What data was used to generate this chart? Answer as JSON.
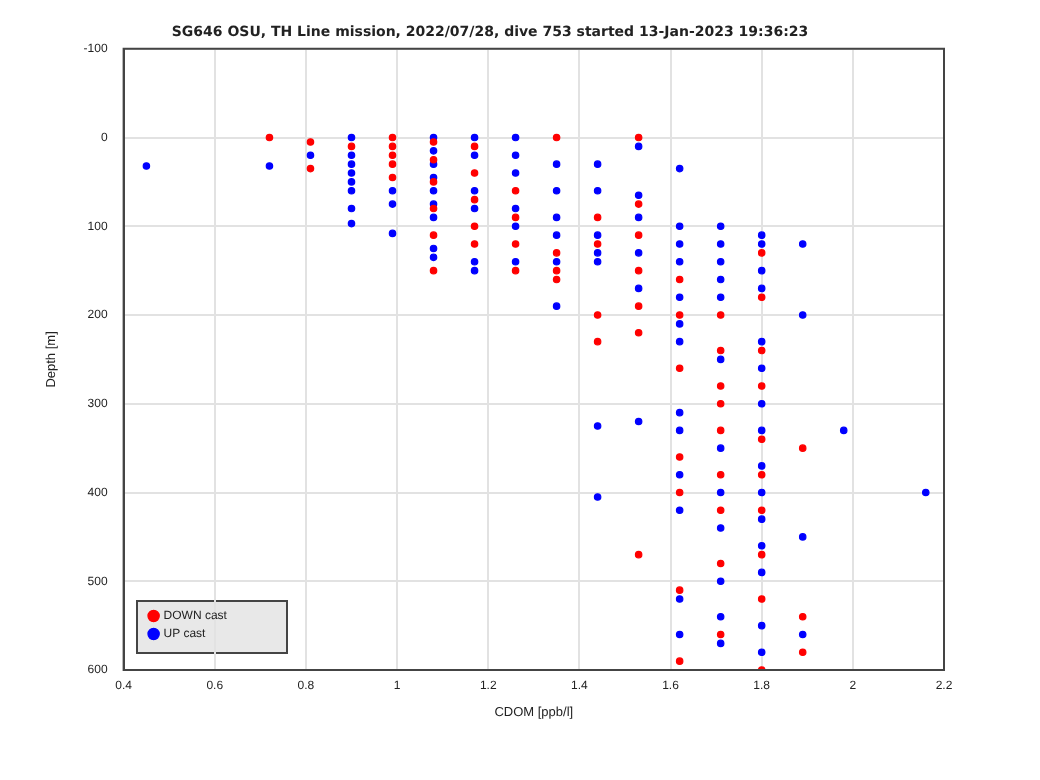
{
  "chart_data": {
    "type": "scatter",
    "title": "SG646 OSU, TH Line mission, 2022/07/28, dive 753 started 13-Jan-2023 19:36:23",
    "xlabel": "CDOM [ppb/l]",
    "ylabel": "Depth [m]",
    "xlim": [
      0.4,
      2.2
    ],
    "xticks": [
      0.4,
      0.6,
      0.8,
      1,
      1.2,
      1.4,
      1.6,
      1.8,
      2,
      2.2
    ],
    "ylim": [
      600,
      -100
    ],
    "yticks": [
      -100,
      0,
      100,
      200,
      300,
      400,
      500,
      600
    ],
    "grid": true,
    "legend": "bottom left",
    "marker": "circle",
    "series": [
      {
        "name": "DOWN cast",
        "color": "#ff0000",
        "x": [
          0.72,
          0.81,
          0.81,
          0.9,
          0.99,
          0.99,
          0.99,
          0.99,
          0.99,
          1.08,
          1.08,
          1.08,
          1.08,
          1.08,
          1.08,
          1.17,
          1.17,
          1.17,
          1.17,
          1.17,
          1.26,
          1.26,
          1.26,
          1.26,
          1.35,
          1.35,
          1.35,
          1.35,
          1.44,
          1.44,
          1.44,
          1.44,
          1.53,
          1.53,
          1.53,
          1.53,
          1.53,
          1.53,
          1.53,
          1.62,
          1.62,
          1.62,
          1.62,
          1.62,
          1.62,
          1.62,
          1.71,
          1.71,
          1.71,
          1.71,
          1.71,
          1.71,
          1.71,
          1.71,
          1.71,
          1.8,
          1.8,
          1.8,
          1.8,
          1.8,
          1.8,
          1.8,
          1.8,
          1.8,
          1.8,
          1.89,
          1.89,
          1.89
        ],
        "values": [
          0,
          5,
          35,
          10,
          0,
          10,
          20,
          30,
          45,
          5,
          25,
          50,
          80,
          110,
          150,
          10,
          40,
          70,
          100,
          120,
          60,
          90,
          120,
          150,
          0,
          130,
          150,
          160,
          90,
          120,
          200,
          230,
          0,
          75,
          110,
          150,
          190,
          220,
          470,
          160,
          200,
          260,
          360,
          400,
          510,
          590,
          200,
          240,
          280,
          300,
          330,
          380,
          420,
          480,
          560,
          130,
          180,
          240,
          280,
          340,
          380,
          420,
          470,
          520,
          600,
          350,
          540,
          580
        ]
      },
      {
        "name": "UP cast",
        "color": "#0000ff",
        "x": [
          0.45,
          0.72,
          0.81,
          0.9,
          0.9,
          0.9,
          0.9,
          0.9,
          0.9,
          0.9,
          0.9,
          0.99,
          0.99,
          0.99,
          1.08,
          1.08,
          1.08,
          1.08,
          1.08,
          1.08,
          1.08,
          1.08,
          1.08,
          1.17,
          1.17,
          1.17,
          1.17,
          1.17,
          1.17,
          1.26,
          1.26,
          1.26,
          1.26,
          1.26,
          1.26,
          1.35,
          1.35,
          1.35,
          1.35,
          1.35,
          1.35,
          1.44,
          1.44,
          1.44,
          1.44,
          1.44,
          1.44,
          1.44,
          1.53,
          1.53,
          1.53,
          1.53,
          1.53,
          1.53,
          1.62,
          1.62,
          1.62,
          1.62,
          1.62,
          1.62,
          1.62,
          1.62,
          1.62,
          1.62,
          1.62,
          1.62,
          1.62,
          1.71,
          1.71,
          1.71,
          1.71,
          1.71,
          1.71,
          1.71,
          1.71,
          1.71,
          1.71,
          1.71,
          1.71,
          1.8,
          1.8,
          1.8,
          1.8,
          1.8,
          1.8,
          1.8,
          1.8,
          1.8,
          1.8,
          1.8,
          1.8,
          1.8,
          1.8,
          1.8,
          1.89,
          1.89,
          1.89,
          1.89,
          1.98,
          2.16
        ],
        "values": [
          32,
          32,
          20,
          0,
          20,
          30,
          40,
          50,
          60,
          80,
          97,
          60,
          75,
          108,
          0,
          15,
          30,
          45,
          60,
          75,
          90,
          125,
          135,
          0,
          20,
          60,
          80,
          140,
          150,
          0,
          20,
          40,
          80,
          100,
          140,
          30,
          60,
          90,
          110,
          140,
          190,
          30,
          60,
          110,
          130,
          140,
          325,
          405,
          10,
          65,
          90,
          130,
          170,
          320,
          35,
          100,
          120,
          140,
          180,
          210,
          230,
          310,
          330,
          380,
          420,
          520,
          560,
          100,
          120,
          140,
          160,
          180,
          250,
          350,
          400,
          440,
          500,
          540,
          570,
          110,
          120,
          150,
          170,
          230,
          260,
          300,
          330,
          370,
          400,
          430,
          460,
          490,
          550,
          580,
          120,
          200,
          450,
          560,
          330,
          400
        ]
      }
    ]
  }
}
